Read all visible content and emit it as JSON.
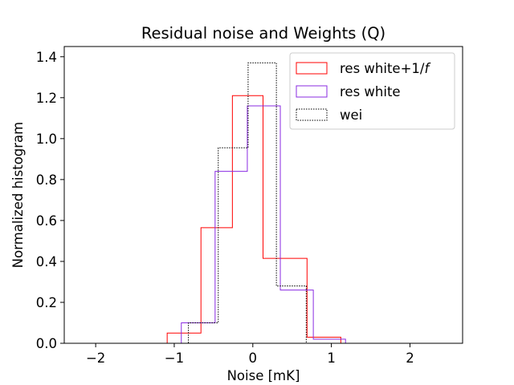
{
  "chart_data": {
    "type": "histogram",
    "title": "Residual noise and Weights (Q)",
    "xlabel": "Noise [mK]",
    "ylabel": "Normalized histogram",
    "xlim": [
      -2.4,
      2.67
    ],
    "ylim": [
      0.0,
      1.45
    ],
    "xticks": [
      -2,
      -1,
      0,
      1,
      2
    ],
    "xtick_labels": [
      "−2",
      "−1",
      "0",
      "1",
      "2"
    ],
    "yticks": [
      0.0,
      0.2,
      0.4,
      0.6,
      0.8,
      1.0,
      1.2,
      1.4
    ],
    "ytick_labels": [
      "0.0",
      "0.2",
      "0.4",
      "0.6",
      "0.8",
      "1.0",
      "1.2",
      "1.4"
    ],
    "grid": false,
    "legend_position": "top-right",
    "series": [
      {
        "name": "res white+1/f",
        "legend_prefix": "res white+1/",
        "legend_italic": "f",
        "color": "#ff0000",
        "style": "solid",
        "bin_edges": [
          -2.2,
          -1.83,
          -1.46,
          -1.09,
          -0.66,
          -0.26,
          0.13,
          0.3,
          0.69,
          1.12,
          1.5,
          1.9,
          2.45
        ],
        "values": [
          0.0,
          0.0,
          0.0,
          0.05,
          0.565,
          1.21,
          0.415,
          0.415,
          0.03,
          0.0,
          0.0,
          0.0
        ]
      },
      {
        "name": "res white",
        "legend_prefix": "res white",
        "legend_italic": "",
        "color": "#8a2be2",
        "style": "solid",
        "bin_edges": [
          -1.28,
          -0.91,
          -0.48,
          -0.07,
          0.35,
          0.77,
          1.18,
          1.55,
          1.92
        ],
        "values": [
          0.0,
          0.1,
          0.84,
          1.16,
          0.26,
          0.02,
          0.0,
          0.0
        ]
      },
      {
        "name": "wei",
        "legend_prefix": "wei",
        "legend_italic": "",
        "color": "#000000",
        "style": "dotted",
        "bin_edges": [
          -1.0,
          -0.82,
          -0.44,
          -0.06,
          0.3,
          0.68,
          1.06
        ],
        "values": [
          0.0,
          0.1,
          0.955,
          1.37,
          0.28,
          0.0
        ]
      }
    ]
  }
}
